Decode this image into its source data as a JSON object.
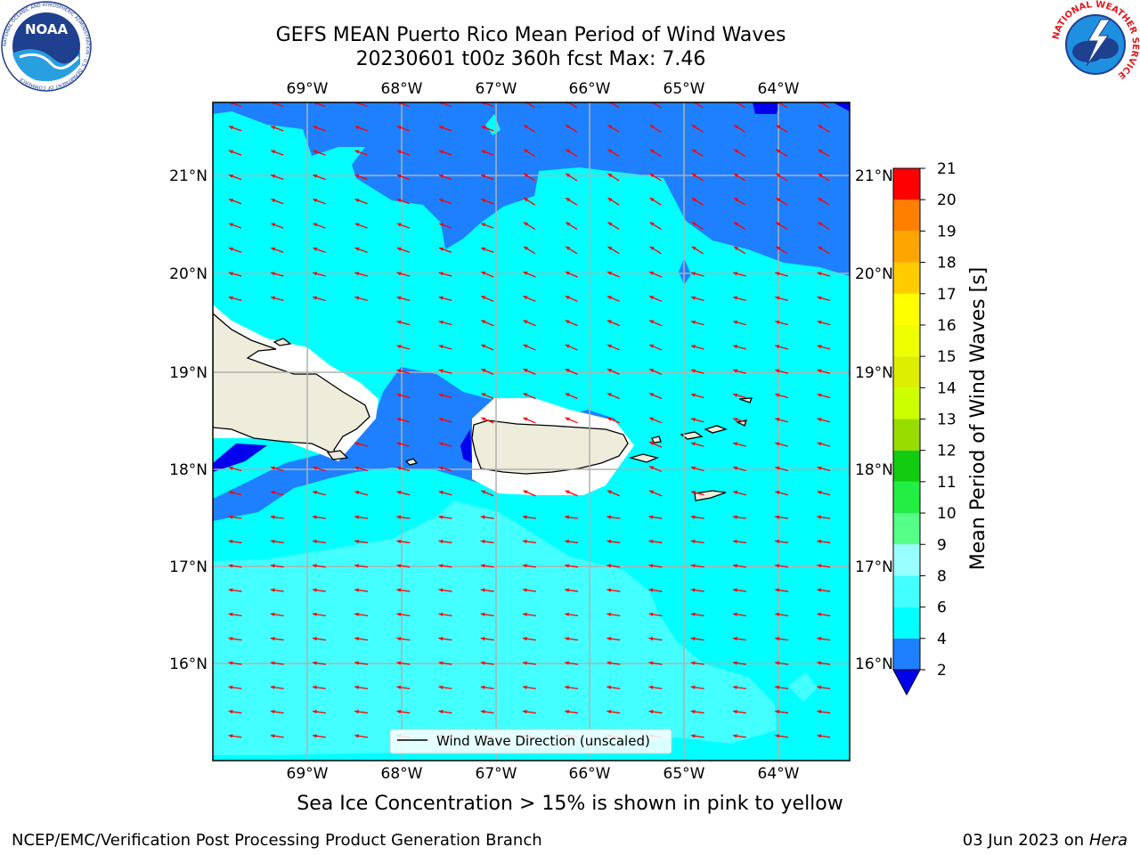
{
  "header": {
    "title_line1": "GEFS MEAN Puerto Rico Mean Period of Wind Waves",
    "title_line2": "20230601 t00z 360h fcst   Max: 7.46"
  },
  "logos": {
    "left": {
      "name": "NOAA",
      "ring_text": "NATIONAL OCEANIC AND ATMOSPHERIC ADMINISTRATION · U.S. DEPARTMENT OF COMMERCE",
      "color": "#1f3f8f"
    },
    "right": {
      "name": "NATIONAL WEATHER SERVICE",
      "color": "#e0191e"
    }
  },
  "map": {
    "lon_labels": [
      "69°W",
      "68°W",
      "67°W",
      "66°W",
      "65°W",
      "64°W"
    ],
    "lat_labels": [
      "21°N",
      "20°N",
      "19°N",
      "18°N",
      "17°N",
      "16°N"
    ],
    "legend_label": "Wind Wave Direction (unscaled)",
    "colors": {
      "land": "#eeecda",
      "band_2_4": "#1e80ff",
      "band_4_6": "#00ffff",
      "band_6_8": "#44ffff",
      "band_below_2": "#0000ee",
      "arrow": "#ff0000",
      "grid": "#b0b0b0"
    }
  },
  "colorbar": {
    "title": "Mean Period of Wind Waves [s]",
    "ticks": [
      "2",
      "4",
      "6",
      "8",
      "9",
      "10",
      "11",
      "12",
      "13",
      "14",
      "15",
      "16",
      "17",
      "18",
      "19",
      "20",
      "21"
    ],
    "colors": [
      "#1e80ff",
      "#00ffff",
      "#44ffff",
      "#99ffff",
      "#55ff88",
      "#22ee44",
      "#11cc11",
      "#99dd00",
      "#ccff00",
      "#ddee00",
      "#eeff00",
      "#ffff00",
      "#ffcc00",
      "#ffa500",
      "#ff8000",
      "#ff5000",
      "#ff2a00",
      "#ff0000"
    ],
    "under_color": "#0000ee"
  },
  "footer": {
    "ice_note": "Sea Ice Concentration > 15% is shown in pink to yellow",
    "left": "NCEP/EMC/Verification Post Processing Product Generation Branch",
    "date": "03 Jun 2023 on",
    "host": "Hera"
  }
}
